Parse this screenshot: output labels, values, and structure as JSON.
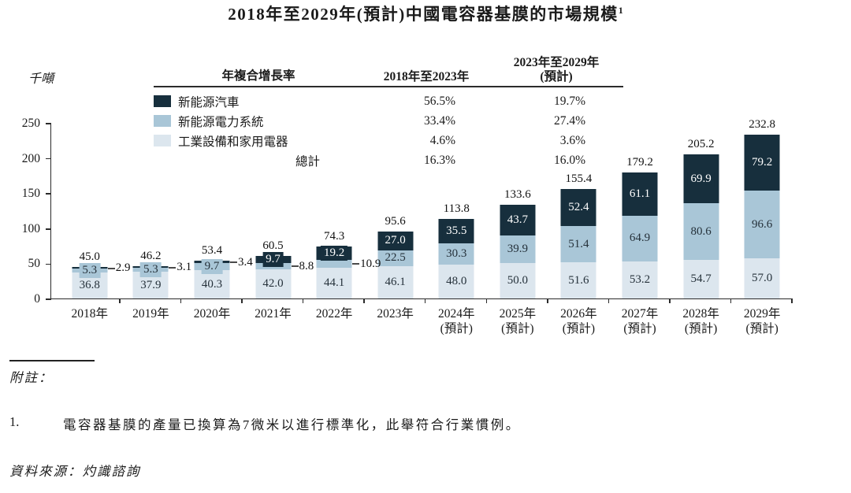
{
  "title": {
    "text": "2018年至2029年(預計)中國電容器基膜的市場規模",
    "superscript": "1"
  },
  "legend_table": {
    "header": {
      "col0": "年複合增長率",
      "col1": "2018年至2023年",
      "col2_line1": "2023年至2029年",
      "col2_line2": "(預計)"
    },
    "rows": [
      {
        "label": "新能源汽車",
        "cagr_2018_2023": "56.5%",
        "cagr_2023_2029": "19.7%"
      },
      {
        "label": "新能源電力系統",
        "cagr_2018_2023": "33.4%",
        "cagr_2023_2029": "27.4%"
      },
      {
        "label": "工業設備和家用電器",
        "cagr_2018_2023": "4.6%",
        "cagr_2023_2029": "3.6%"
      },
      {
        "label": "總計",
        "cagr_2018_2023": "16.3%",
        "cagr_2023_2029": "16.0%"
      }
    ]
  },
  "chart_data": {
    "type": "bar",
    "stacked": true,
    "title": "2018年至2029年(預計)中國電容器基膜的市場規模",
    "ylabel": "千噸",
    "ylim": [
      0,
      250
    ],
    "y_ticks": [
      0,
      50,
      100,
      150,
      200,
      250
    ],
    "categories": [
      "2018年",
      "2019年",
      "2020年",
      "2021年",
      "2022年",
      "2023年",
      "2024年",
      "2025年",
      "2026年",
      "2027年",
      "2028年",
      "2029年"
    ],
    "forecast_suffix": "(預計)",
    "forecast_from_index": 6,
    "series": [
      {
        "name": "新能源汽車",
        "color": "#172f3d",
        "values": [
          2.9,
          3.1,
          3.4,
          9.7,
          19.2,
          27.0,
          35.5,
          43.7,
          52.4,
          61.1,
          69.9,
          79.2
        ]
      },
      {
        "name": "新能源電力系統",
        "color": "#a9c6d7",
        "values": [
          5.3,
          5.3,
          9.7,
          8.8,
          10.9,
          22.5,
          30.3,
          39.9,
          51.4,
          64.9,
          80.6,
          96.6
        ]
      },
      {
        "name": "工業設備和家用電器",
        "color": "#dce6ee",
        "values": [
          36.8,
          37.9,
          40.3,
          42.0,
          44.1,
          46.1,
          48.0,
          50.0,
          51.6,
          53.2,
          54.7,
          57.0
        ]
      }
    ],
    "totals": [
      45.0,
      46.2,
      53.4,
      60.5,
      74.3,
      95.6,
      113.8,
      133.6,
      155.4,
      179.2,
      205.2,
      232.8
    ],
    "legend_position": "top"
  },
  "notes": {
    "heading": "附註：",
    "items": [
      {
        "num": "1.",
        "text": "電容器基膜的產量已換算為7微米以進行標準化，此舉符合行業慣例。"
      }
    ],
    "source": "資料來源：灼識諮詢"
  }
}
